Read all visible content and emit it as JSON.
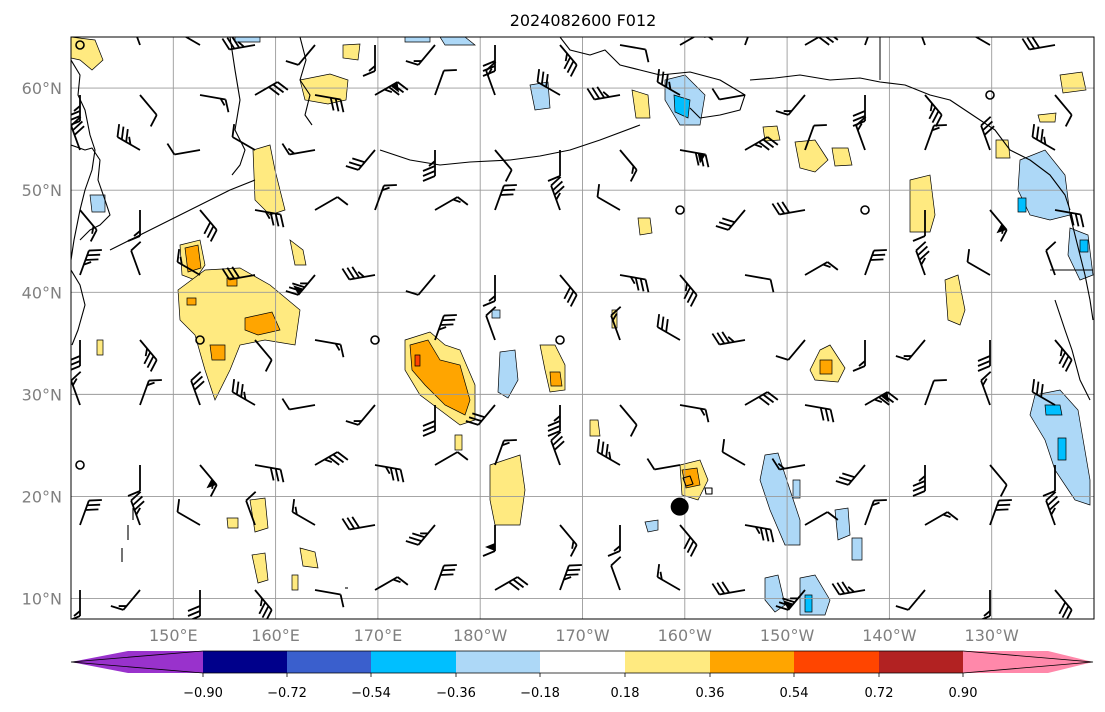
{
  "title": "2024082600 F012",
  "lat_labels": [
    "60°N",
    "50°N",
    "40°N",
    "30°N",
    "20°N",
    "10°N"
  ],
  "lon_labels": [
    "150°E",
    "160°E",
    "170°E",
    "180°W",
    "170°W",
    "160°W",
    "150°W",
    "140°W",
    "130°W"
  ],
  "colorbar": {
    "tick_labels": [
      "−0.90",
      "−0.72",
      "−0.54",
      "−0.36",
      "−0.18",
      "0.18",
      "0.36",
      "0.54",
      "0.72",
      "0.90"
    ],
    "levels": [
      -0.9,
      -0.72,
      -0.54,
      -0.36,
      -0.18,
      0.18,
      0.36,
      0.54,
      0.72,
      0.9
    ],
    "colors": [
      "#9932cc",
      "#00008b",
      "#3a5fcd",
      "#00bfff",
      "#add8f7",
      "#ffffff",
      "#ffea80",
      "#ffa500",
      "#ff4500",
      "#b22222",
      "#ff88aa"
    ]
  },
  "map": {
    "projection": "PlateCarree",
    "lon_range": [
      "140°E",
      "120°W"
    ],
    "lat_range": [
      "8°N",
      "65°N"
    ],
    "gridlines": true,
    "features": [
      "coastlines",
      "country-borders",
      "wind-barbs",
      "filled-contours",
      "cyclone-marker"
    ],
    "cyclone_marker": {
      "lat": 19,
      "lon": -160.5
    }
  }
}
